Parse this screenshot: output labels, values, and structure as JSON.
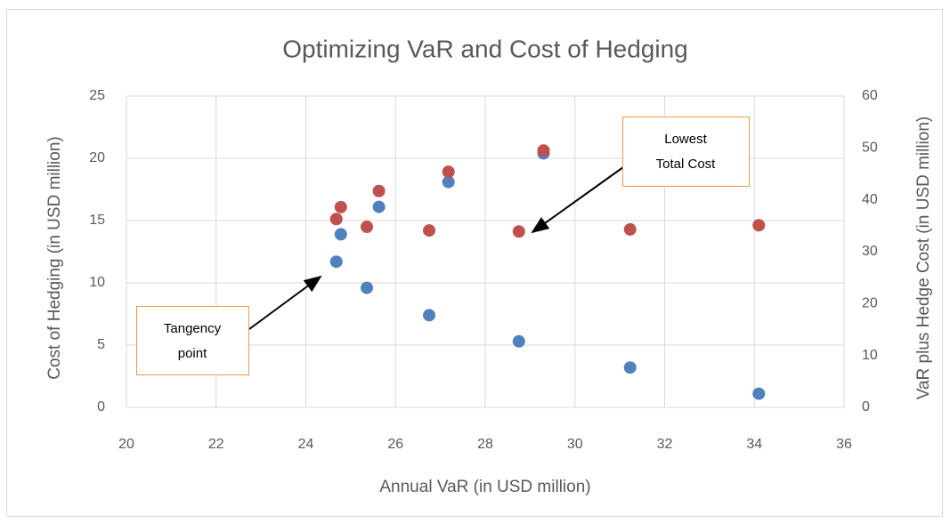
{
  "chart_data": {
    "type": "scatter",
    "title": "Optimizing VaR and Cost of Hedging",
    "x_label": "Annual VaR (in USD million)",
    "y_label": "Cost of Hedging (in USD million)",
    "y2_label": "VaR plus Hedge Cost (in USD million)",
    "xlim": [
      20,
      36
    ],
    "xticks": [
      20,
      22,
      24,
      26,
      28,
      30,
      32,
      34,
      36
    ],
    "ylim": [
      0,
      25
    ],
    "yticks": [
      0,
      5,
      10,
      15,
      20,
      25
    ],
    "y2lim": [
      0,
      60
    ],
    "y2ticks": [
      0,
      10,
      20,
      30,
      40,
      50,
      60
    ],
    "grid": true,
    "series": [
      {
        "color": "#4f81bd",
        "x": [
          24.68,
          24.78,
          25.36,
          25.63,
          26.75,
          27.18,
          28.75,
          29.3,
          31.23,
          34.1
        ],
        "values": [
          11.7,
          13.9,
          9.6,
          16.1,
          7.4,
          18.1,
          5.3,
          20.4,
          3.2,
          1.1
        ]
      },
      {
        "color": "#c0504d",
        "axis": "y2",
        "x": [
          24.68,
          24.78,
          25.36,
          25.63,
          26.75,
          27.18,
          28.75,
          29.3,
          31.23,
          34.1
        ],
        "values": [
          36.3,
          38.6,
          34.8,
          41.7,
          34.1,
          45.4,
          33.9,
          49.5,
          34.3,
          35.1
        ]
      }
    ],
    "annotations": [
      {
        "lines": [
          "Tangency",
          "point"
        ]
      },
      {
        "lines": [
          "Lowest",
          "Total Cost"
        ]
      }
    ]
  }
}
